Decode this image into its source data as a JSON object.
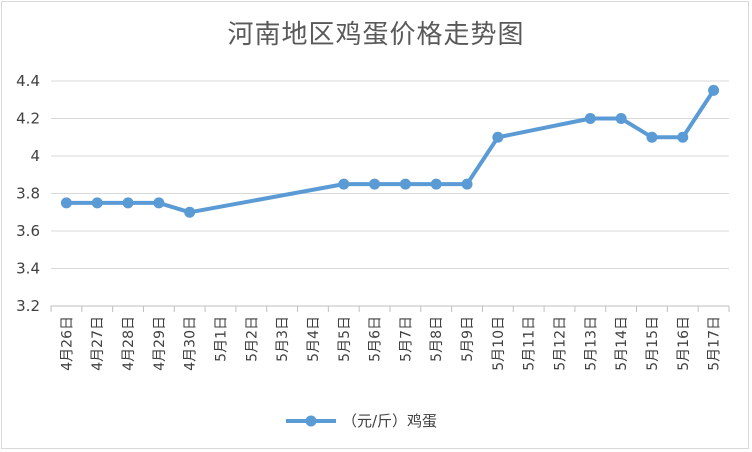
{
  "chart_data": {
    "type": "line",
    "title": "河南地区鸡蛋价格走势图",
    "categories": [
      "4月26日",
      "4月27日",
      "4月28日",
      "4月29日",
      "4月30日",
      "5月1日",
      "5月2日",
      "5月3日",
      "5月4日",
      "5月5日",
      "5月6日",
      "5月7日",
      "5月8日",
      "5月9日",
      "5月10日",
      "5月11日",
      "5月12日",
      "5月13日",
      "5月14日",
      "5月15日",
      "5月16日",
      "5月17日"
    ],
    "series": [
      {
        "name": "（元/斤）鸡蛋",
        "values": [
          3.75,
          3.75,
          3.75,
          3.75,
          3.7,
          null,
          null,
          null,
          null,
          3.85,
          3.85,
          3.85,
          3.85,
          3.85,
          4.1,
          null,
          null,
          4.2,
          4.2,
          4.1,
          4.1,
          4.35
        ]
      }
    ],
    "ylim": [
      3.2,
      4.4
    ],
    "yticks": [
      "3.2",
      "3.4",
      "3.6",
      "3.8",
      "4",
      "4.2",
      "4.4"
    ],
    "grid": true,
    "legend": "bottom",
    "colors": {
      "line": "#5b9bd5",
      "grid": "#d9d9d9",
      "axis": "#bfbfbf"
    }
  }
}
